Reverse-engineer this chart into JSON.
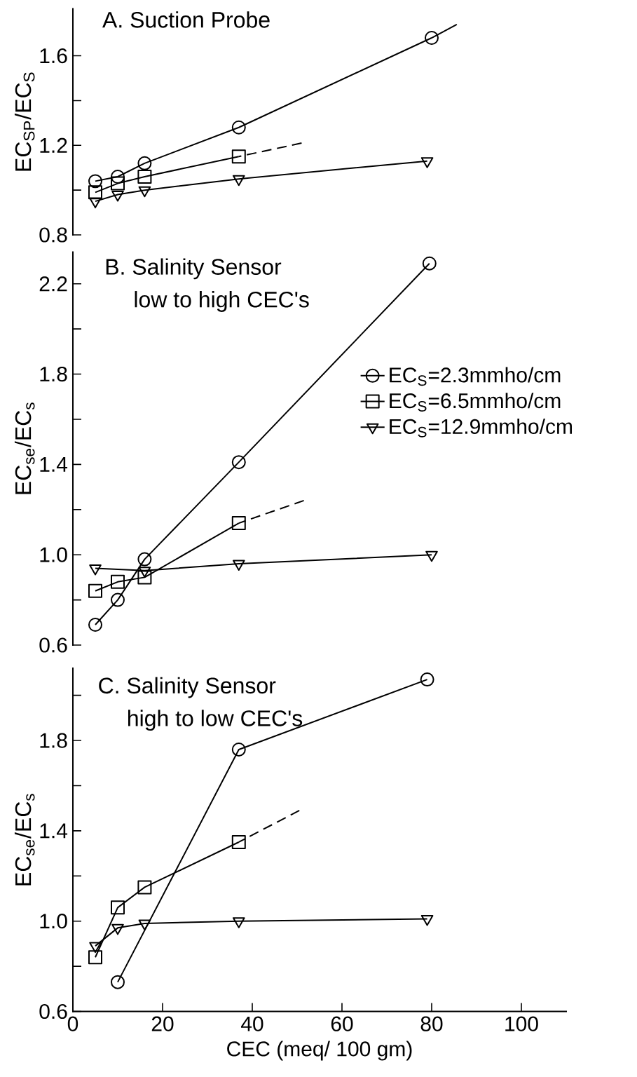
{
  "chart_data": [
    {
      "type": "line",
      "title": "A. Suction Probe",
      "ylabel": "EC$_{SP}$/EC$_{S}$",
      "xlim": [
        0,
        100
      ],
      "xticks": [
        0,
        20,
        40,
        60,
        80,
        100
      ],
      "ylim": [
        0.8,
        1.81
      ],
      "yticks": [
        0.8,
        {
          "value": 1.0,
          "label": null
        },
        1.2,
        {
          "value": 1.4,
          "label": null
        },
        1.6
      ],
      "tick_labels": "y",
      "series": [
        {
          "color": "#000000",
          "marker": "circle",
          "x": [
            5,
            10,
            16,
            37,
            80
          ],
          "values": [
            1.04,
            1.06,
            1.12,
            1.28,
            1.68
          ]
        },
        {
          "color": "#000000",
          "marker": "square",
          "x": [
            5,
            10,
            16,
            37
          ],
          "values": [
            0.99,
            1.03,
            1.06,
            1.15
          ]
        },
        {
          "color": "#000000",
          "marker": "triangle",
          "x": [
            5,
            10,
            16,
            37,
            79
          ],
          "values": [
            0.95,
            0.98,
            1.0,
            1.05,
            1.13
          ]
        },
        {
          "color": "#000000",
          "marker": "none",
          "x": [
            80,
            85.6
          ],
          "values": [
            1.68,
            1.74
          ]
        },
        {
          "color": "#000000",
          "marker": "none",
          "line_style": "dashed",
          "x": [
            51,
            37
          ],
          "values": [
            1.21,
            1.15
          ]
        }
      ]
    },
    {
      "type": "line",
      "title": "B. Salinity Sensor",
      "subtitle": "low to high CEC's",
      "ylabel": "EC$_{se}$/EC$_{s}$",
      "xlim": [
        0,
        100
      ],
      "xticks": [
        0,
        20,
        40,
        60,
        80,
        100
      ],
      "ylim": [
        0.6,
        2.34
      ],
      "yticks": [
        0.6,
        {
          "value": 0.8,
          "label": null
        },
        {
          "value": 1.0,
          "label": "1.0"
        },
        {
          "value": 1.2,
          "label": null
        },
        1.4,
        {
          "value": 1.6,
          "label": null
        },
        1.8,
        {
          "value": 2.0,
          "label": null
        },
        2.2
      ],
      "tick_labels": "y",
      "legend": "right",
      "series": [
        {
          "name": "EC$_{S}$=2.3mmho/cm",
          "color": "#000000",
          "marker": "circle",
          "x": [
            5,
            10,
            16,
            37,
            79.5
          ],
          "values": [
            0.69,
            0.8,
            0.98,
            1.41,
            2.29
          ]
        },
        {
          "name": "EC$_{S}$=6.5mmho/cm",
          "color": "#000000",
          "marker": "square",
          "x": [
            5,
            10,
            16,
            37
          ],
          "values": [
            0.84,
            0.88,
            0.9,
            1.14
          ]
        },
        {
          "name": "EC$_{S}$=12.9mmho/cm",
          "color": "#000000",
          "marker": "triangle",
          "x": [
            5,
            16,
            37,
            80
          ],
          "values": [
            0.94,
            0.93,
            0.96,
            1.0
          ]
        },
        {
          "color": "#000000",
          "marker": "none",
          "line_style": "dashed",
          "x": [
            51.5,
            37
          ],
          "values": [
            1.24,
            1.14
          ]
        }
      ]
    },
    {
      "type": "line",
      "title": "C. Salinity Sensor",
      "subtitle": "high to low CEC's",
      "xlabel": "CEC (meq/ 100 gm)",
      "ylabel": "EC$_{se}$/EC$_{s}$",
      "xlim": [
        0,
        110
      ],
      "ylim": [
        0.6,
        2.12
      ],
      "xticks": [
        0,
        20,
        40,
        60,
        80,
        100
      ],
      "yticks": [
        0.6,
        {
          "value": 0.8,
          "label": null
        },
        {
          "value": 1.0,
          "label": "1.0"
        },
        {
          "value": 1.2,
          "label": null
        },
        1.4,
        {
          "value": 1.6,
          "label": null
        },
        1.8,
        {
          "value": 2.0,
          "label": null
        }
      ],
      "series": [
        {
          "color": "#000000",
          "marker": "circle",
          "x": [
            10,
            37,
            79
          ],
          "values": [
            0.73,
            1.76,
            2.07
          ]
        },
        {
          "color": "#000000",
          "marker": "square",
          "x": [
            5,
            10,
            16,
            37
          ],
          "values": [
            0.84,
            1.06,
            1.15,
            1.35
          ]
        },
        {
          "color": "#000000",
          "marker": "triangle",
          "x": [
            5,
            10,
            16,
            37,
            79
          ],
          "values": [
            0.89,
            0.97,
            0.99,
            1.0,
            1.01
          ]
        },
        {
          "color": "#000000",
          "marker": "none",
          "line_style": "dashed",
          "x": [
            50.5,
            37
          ],
          "values": [
            1.49,
            1.35
          ]
        }
      ]
    }
  ]
}
